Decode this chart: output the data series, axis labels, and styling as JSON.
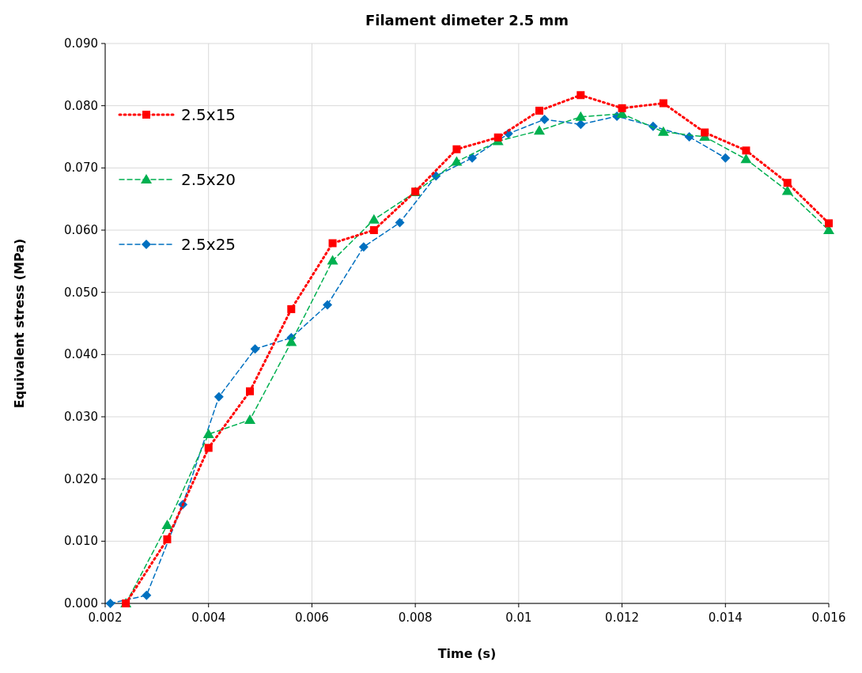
{
  "chart_data": {
    "type": "line",
    "title": "Filament dimeter 2.5 mm",
    "xlabel": "Time (s)",
    "ylabel": "Equivalent stress (MPa)",
    "xlim": [
      0.002,
      0.016
    ],
    "xticks": [
      0.002,
      0.004,
      0.006,
      0.008,
      0.01,
      0.012,
      0.014,
      0.016
    ],
    "ylim": [
      0,
      0.09
    ],
    "yticks": [
      {
        "value": 0,
        "label": "0.000"
      },
      {
        "value": 0.01,
        "label": "0.010"
      },
      {
        "value": 0.02,
        "label": "0.020"
      },
      {
        "value": 0.03,
        "label": "0.030"
      },
      {
        "value": 0.04,
        "label": "0.040"
      },
      {
        "value": 0.05,
        "label": "0.050"
      },
      {
        "value": 0.06,
        "label": "0.060"
      },
      {
        "value": 0.07,
        "label": "0.070"
      },
      {
        "value": 0.08,
        "label": "0.080"
      },
      {
        "value": 0.09,
        "label": "0.090"
      }
    ],
    "grid": true,
    "legend": "top left",
    "series": [
      {
        "name": "2.5x15",
        "color": "#ff0000",
        "marker": "square",
        "line_style": "dotted",
        "x": [
          0.0024,
          0.0032,
          0.004,
          0.0048,
          0.0056,
          0.0064,
          0.0072,
          0.008,
          0.0088,
          0.0096,
          0.0104,
          0.0112,
          0.012,
          0.0128,
          0.0136,
          0.0144,
          0.0152,
          0.016
        ],
        "values": [
          0,
          0.0103,
          0.025,
          0.0341,
          0.0473,
          0.0579,
          0.06,
          0.0662,
          0.073,
          0.0749,
          0.0792,
          0.0817,
          0.0796,
          0.0804,
          0.0757,
          0.0728,
          0.0676,
          0.0611
        ]
      },
      {
        "name": "2.5x20",
        "color": "#00b050",
        "marker": "triangle",
        "line_style": "dashed",
        "x": [
          0.0024,
          0.0032,
          0.004,
          0.0048,
          0.0056,
          0.0064,
          0.0072,
          0.008,
          0.0088,
          0.0096,
          0.0104,
          0.0112,
          0.012,
          0.0128,
          0.0136,
          0.0144,
          0.0152,
          0.016
        ],
        "values": [
          0,
          0.0126,
          0.0272,
          0.0295,
          0.042,
          0.0551,
          0.0617,
          0.0661,
          0.071,
          0.0743,
          0.076,
          0.0782,
          0.0787,
          0.0758,
          0.075,
          0.0714,
          0.0663,
          0.06
        ]
      },
      {
        "name": "2.5x25",
        "color": "#0070c0",
        "marker": "diamond",
        "line_style": "dashed",
        "x": [
          0.0021,
          0.0028,
          0.0035,
          0.0042,
          0.0049,
          0.0056,
          0.0063,
          0.007,
          0.0077,
          0.0084,
          0.0091,
          0.0098,
          0.0105,
          0.0112,
          0.0119,
          0.0126,
          0.0133,
          0.014
        ],
        "values": [
          0,
          0.0013,
          0.0159,
          0.0332,
          0.0409,
          0.0427,
          0.048,
          0.0573,
          0.0612,
          0.0687,
          0.0716,
          0.0755,
          0.0778,
          0.077,
          0.0783,
          0.0767,
          0.075,
          0.0716
        ]
      }
    ]
  }
}
